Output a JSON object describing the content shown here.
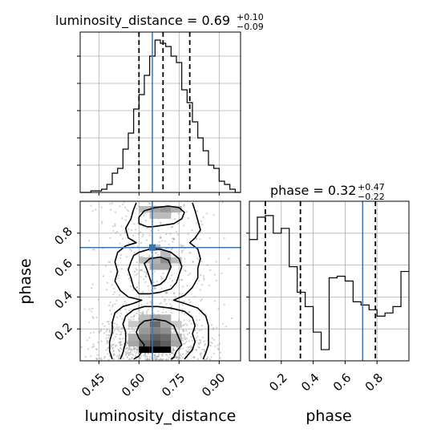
{
  "colors": {
    "truth": "#3b75af",
    "hist": "#000000",
    "grid": "#b0b0b0",
    "quantile": "#000000",
    "points": "#9a9a9a"
  },
  "chart_data": [
    {
      "type": "histogram",
      "panel": "top-left",
      "title": "luminosity_distance = 0.69",
      "title_main": "luminosity_distance = 0.69",
      "title_sup": "+0.10",
      "title_sub": "−0.09",
      "xlim": [
        0.38,
        0.98
      ],
      "ylim": [
        0,
        1.0
      ],
      "grid": true,
      "bin_edges": [
        0.38,
        0.4,
        0.42,
        0.44,
        0.46,
        0.48,
        0.5,
        0.52,
        0.54,
        0.56,
        0.58,
        0.6,
        0.62,
        0.64,
        0.66,
        0.68,
        0.7,
        0.72,
        0.74,
        0.76,
        0.78,
        0.8,
        0.82,
        0.84,
        0.86,
        0.88,
        0.9,
        0.92,
        0.94,
        0.96,
        0.98
      ],
      "counts": [
        0.0,
        0.0,
        0.01,
        0.01,
        0.02,
        0.05,
        0.12,
        0.15,
        0.27,
        0.37,
        0.52,
        0.61,
        0.73,
        0.85,
        0.95,
        0.93,
        0.91,
        0.85,
        0.81,
        0.64,
        0.56,
        0.44,
        0.34,
        0.26,
        0.17,
        0.15,
        0.07,
        0.05,
        0.02,
        0.0
      ],
      "quantiles": [
        0.6,
        0.69,
        0.79
      ],
      "truth": 0.65
    },
    {
      "type": "histogram",
      "panel": "bottom-right",
      "title": "phase = 0.32",
      "title_main": "phase = 0.32",
      "title_sup": "+0.47",
      "title_sub": "−0.22",
      "xlabel": "phase",
      "xlim": [
        0.0,
        1.0
      ],
      "ylim": [
        0,
        1.0
      ],
      "grid": true,
      "xticks": [
        0.2,
        0.4,
        0.6,
        0.8
      ],
      "xticklabels": [
        "0.2",
        "0.4",
        "0.6",
        "0.8"
      ],
      "bin_edges": [
        0.0,
        0.05,
        0.1,
        0.15,
        0.2,
        0.25,
        0.3,
        0.35,
        0.4,
        0.45,
        0.5,
        0.55,
        0.6,
        0.65,
        0.7,
        0.75,
        0.8,
        0.85,
        0.9,
        0.95,
        1.0
      ],
      "counts": [
        0.76,
        0.9,
        0.91,
        0.8,
        0.83,
        0.59,
        0.43,
        0.34,
        0.18,
        0.07,
        0.52,
        0.53,
        0.5,
        0.37,
        0.35,
        0.32,
        0.28,
        0.3,
        0.34,
        0.56
      ],
      "quantiles": [
        0.1,
        0.32,
        0.79
      ],
      "truth": 0.71
    },
    {
      "type": "scatter-contour",
      "panel": "bottom-left",
      "xlabel": "luminosity_distance",
      "ylabel": "phase",
      "xlim": [
        0.38,
        0.98
      ],
      "ylim": [
        0.0,
        1.0
      ],
      "grid": true,
      "xticks": [
        0.45,
        0.6,
        0.75,
        0.9
      ],
      "xticklabels": [
        "0.45",
        "0.60",
        "0.75",
        "0.90"
      ],
      "yticks": [
        0.2,
        0.4,
        0.6,
        0.8
      ],
      "yticklabels": [
        "0.2",
        "0.4",
        "0.6",
        "0.8"
      ],
      "truth": [
        0.65,
        0.71
      ],
      "density_cells": [
        {
          "x": 0.62,
          "y": 0.07,
          "v": 1.0
        },
        {
          "x": 0.66,
          "y": 0.07,
          "v": 1.0
        },
        {
          "x": 0.7,
          "y": 0.07,
          "v": 1.0
        },
        {
          "x": 0.66,
          "y": 0.11,
          "v": 0.7
        },
        {
          "x": 0.7,
          "y": 0.11,
          "v": 0.6
        },
        {
          "x": 0.62,
          "y": 0.11,
          "v": 0.55
        },
        {
          "x": 0.66,
          "y": 0.15,
          "v": 0.6
        },
        {
          "x": 0.62,
          "y": 0.15,
          "v": 0.45
        },
        {
          "x": 0.7,
          "y": 0.15,
          "v": 0.55
        },
        {
          "x": 0.66,
          "y": 0.19,
          "v": 0.45
        },
        {
          "x": 0.62,
          "y": 0.19,
          "v": 0.35
        },
        {
          "x": 0.7,
          "y": 0.19,
          "v": 0.4
        },
        {
          "x": 0.66,
          "y": 0.23,
          "v": 0.55
        },
        {
          "x": 0.62,
          "y": 0.23,
          "v": 0.3
        },
        {
          "x": 0.7,
          "y": 0.23,
          "v": 0.3
        },
        {
          "x": 0.58,
          "y": 0.15,
          "v": 0.25
        },
        {
          "x": 0.74,
          "y": 0.15,
          "v": 0.25
        },
        {
          "x": 0.58,
          "y": 0.11,
          "v": 0.3
        },
        {
          "x": 0.74,
          "y": 0.11,
          "v": 0.3
        },
        {
          "x": 0.66,
          "y": 0.27,
          "v": 0.3
        },
        {
          "x": 0.7,
          "y": 0.27,
          "v": 0.25
        },
        {
          "x": 0.62,
          "y": 0.27,
          "v": 0.2
        },
        {
          "x": 0.58,
          "y": 0.23,
          "v": 0.15
        },
        {
          "x": 0.74,
          "y": 0.23,
          "v": 0.15
        },
        {
          "x": 0.7,
          "y": 0.59,
          "v": 0.3
        },
        {
          "x": 0.66,
          "y": 0.59,
          "v": 0.3
        },
        {
          "x": 0.7,
          "y": 0.63,
          "v": 0.4
        },
        {
          "x": 0.66,
          "y": 0.63,
          "v": 0.25
        },
        {
          "x": 0.62,
          "y": 0.63,
          "v": 0.2
        },
        {
          "x": 0.74,
          "y": 0.63,
          "v": 0.2
        },
        {
          "x": 0.7,
          "y": 0.95,
          "v": 0.35
        },
        {
          "x": 0.66,
          "y": 0.95,
          "v": 0.3
        },
        {
          "x": 0.62,
          "y": 0.95,
          "v": 0.2
        },
        {
          "x": 0.74,
          "y": 0.95,
          "v": 0.25
        },
        {
          "x": 0.7,
          "y": 0.91,
          "v": 0.2
        },
        {
          "x": 0.66,
          "y": 0.91,
          "v": 0.2
        },
        {
          "x": 0.7,
          "y": 0.67,
          "v": 0.2
        },
        {
          "x": 0.66,
          "y": 0.71,
          "v": 0.2
        }
      ],
      "contours": [
        [
          [
            0.58,
            0.01
          ],
          [
            0.6,
            0.03
          ],
          [
            0.61,
            0.06
          ],
          [
            0.62,
            0.1
          ],
          [
            0.6,
            0.14
          ],
          [
            0.59,
            0.18
          ],
          [
            0.6,
            0.22
          ],
          [
            0.62,
            0.25
          ],
          [
            0.66,
            0.26
          ],
          [
            0.7,
            0.25
          ],
          [
            0.73,
            0.22
          ],
          [
            0.74,
            0.18
          ],
          [
            0.75,
            0.14
          ],
          [
            0.76,
            0.1
          ],
          [
            0.74,
            0.06
          ],
          [
            0.73,
            0.02
          ],
          [
            0.72,
            0.01
          ]
        ],
        [
          [
            0.65,
            0.47
          ],
          [
            0.64,
            0.52
          ],
          [
            0.63,
            0.57
          ],
          [
            0.62,
            0.61
          ],
          [
            0.64,
            0.64
          ],
          [
            0.68,
            0.65
          ],
          [
            0.71,
            0.63
          ],
          [
            0.72,
            0.59
          ],
          [
            0.71,
            0.55
          ],
          [
            0.7,
            0.51
          ],
          [
            0.68,
            0.48
          ],
          [
            0.66,
            0.47
          ],
          [
            0.65,
            0.47
          ]
        ],
        [
          [
            0.53,
            0.01
          ],
          [
            0.54,
            0.05
          ],
          [
            0.55,
            0.12
          ],
          [
            0.55,
            0.18
          ],
          [
            0.54,
            0.23
          ],
          [
            0.55,
            0.28
          ],
          [
            0.58,
            0.32
          ],
          [
            0.62,
            0.34
          ],
          [
            0.67,
            0.34
          ],
          [
            0.72,
            0.33
          ],
          [
            0.77,
            0.31
          ],
          [
            0.8,
            0.27
          ],
          [
            0.81,
            0.22
          ],
          [
            0.8,
            0.17
          ],
          [
            0.81,
            0.12
          ],
          [
            0.8,
            0.07
          ],
          [
            0.78,
            0.03
          ],
          [
            0.77,
            0.01
          ]
        ],
        [
          [
            0.6,
            0.42
          ],
          [
            0.58,
            0.46
          ],
          [
            0.57,
            0.52
          ],
          [
            0.56,
            0.57
          ],
          [
            0.57,
            0.62
          ],
          [
            0.58,
            0.66
          ],
          [
            0.6,
            0.68
          ],
          [
            0.64,
            0.7
          ],
          [
            0.68,
            0.7
          ],
          [
            0.72,
            0.68
          ],
          [
            0.75,
            0.64
          ],
          [
            0.76,
            0.59
          ],
          [
            0.75,
            0.54
          ],
          [
            0.74,
            0.49
          ],
          [
            0.72,
            0.45
          ],
          [
            0.68,
            0.43
          ],
          [
            0.64,
            0.42
          ],
          [
            0.6,
            0.42
          ]
        ],
        [
          [
            0.63,
            0.84
          ],
          [
            0.6,
            0.86
          ],
          [
            0.6,
            0.9
          ],
          [
            0.62,
            0.94
          ],
          [
            0.66,
            0.96
          ],
          [
            0.71,
            0.97
          ],
          [
            0.75,
            0.96
          ],
          [
            0.77,
            0.93
          ],
          [
            0.76,
            0.89
          ],
          [
            0.73,
            0.86
          ],
          [
            0.69,
            0.85
          ],
          [
            0.65,
            0.84
          ],
          [
            0.63,
            0.84
          ]
        ],
        [
          [
            0.5,
            0.01
          ],
          [
            0.49,
            0.06
          ],
          [
            0.49,
            0.12
          ],
          [
            0.5,
            0.18
          ],
          [
            0.5,
            0.24
          ],
          [
            0.51,
            0.3
          ],
          [
            0.54,
            0.34
          ],
          [
            0.58,
            0.36
          ],
          [
            0.61,
            0.38
          ],
          [
            0.56,
            0.4
          ],
          [
            0.53,
            0.44
          ],
          [
            0.51,
            0.5
          ],
          [
            0.52,
            0.56
          ],
          [
            0.51,
            0.62
          ],
          [
            0.52,
            0.68
          ],
          [
            0.55,
            0.72
          ],
          [
            0.59,
            0.74
          ],
          [
            0.56,
            0.77
          ],
          [
            0.55,
            0.83
          ],
          [
            0.57,
            0.89
          ],
          [
            0.58,
            0.95
          ],
          [
            0.59,
            0.99
          ]
        ],
        [
          [
            0.8,
            0.99
          ],
          [
            0.81,
            0.94
          ],
          [
            0.82,
            0.88
          ],
          [
            0.83,
            0.82
          ],
          [
            0.81,
            0.77
          ],
          [
            0.79,
            0.74
          ],
          [
            0.82,
            0.7
          ],
          [
            0.83,
            0.64
          ],
          [
            0.82,
            0.58
          ],
          [
            0.82,
            0.52
          ],
          [
            0.8,
            0.46
          ],
          [
            0.77,
            0.41
          ],
          [
            0.73,
            0.38
          ],
          [
            0.77,
            0.36
          ],
          [
            0.82,
            0.33
          ],
          [
            0.85,
            0.28
          ],
          [
            0.86,
            0.22
          ],
          [
            0.86,
            0.16
          ],
          [
            0.86,
            0.1
          ],
          [
            0.85,
            0.05
          ],
          [
            0.84,
            0.01
          ]
        ]
      ]
    }
  ]
}
